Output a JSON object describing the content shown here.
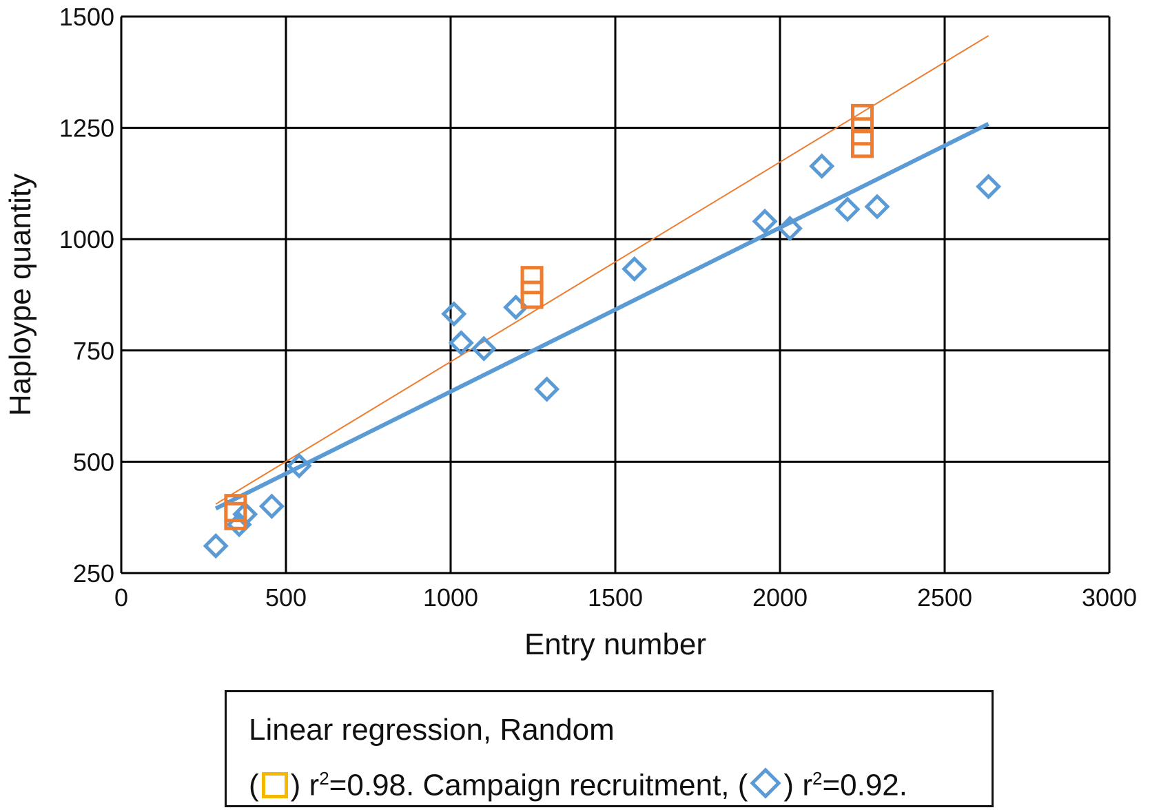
{
  "chart_data": {
    "type": "scatter",
    "xlabel": "Entry number",
    "ylabel": "Haploype quantity",
    "xlim": [
      0,
      3000
    ],
    "ylim": [
      250,
      1500
    ],
    "xticks": [
      "0",
      "500",
      "1000",
      "1500",
      "2000",
      "2500",
      "3000"
    ],
    "yticks": [
      "250",
      "500",
      "750",
      "1000",
      "1250",
      "1500"
    ],
    "grid": true,
    "series": [
      {
        "marker": "diamond",
        "color": "#5b9bd5",
        "points": [
          [
            287,
            311
          ],
          [
            358,
            359
          ],
          [
            376,
            382
          ],
          [
            457,
            400
          ],
          [
            540,
            491
          ],
          [
            1010,
            832
          ],
          [
            1032,
            767
          ],
          [
            1101,
            754
          ],
          [
            1198,
            847
          ],
          [
            1292,
            663
          ],
          [
            1558,
            933
          ],
          [
            1954,
            1040
          ],
          [
            2030,
            1024
          ],
          [
            2127,
            1164
          ],
          [
            2205,
            1067
          ],
          [
            2295,
            1073
          ],
          [
            2633,
            1118
          ]
        ],
        "trendline": [
          [
            287,
            395
          ],
          [
            2633,
            1259
          ]
        ]
      },
      {
        "marker": "square",
        "color": "#ed7d31",
        "points": [
          [
            347,
            378
          ],
          [
            347,
            396
          ],
          [
            1247,
            875
          ],
          [
            1247,
            908
          ],
          [
            2250,
            1214
          ],
          [
            2250,
            1242
          ],
          [
            2250,
            1272
          ]
        ],
        "trendline": [
          [
            287,
            405
          ],
          [
            2633,
            1457
          ]
        ]
      }
    ]
  },
  "legend": {
    "line1": "Linear regression, Random",
    "open_paren": "(",
    "close_paren": ")",
    "r_a": "r",
    "sup_a": "2",
    "text_a": "=0.98. Campaign recruitment,",
    "r_b": "r",
    "sup_b": "2",
    "text_b": "=0.92."
  }
}
